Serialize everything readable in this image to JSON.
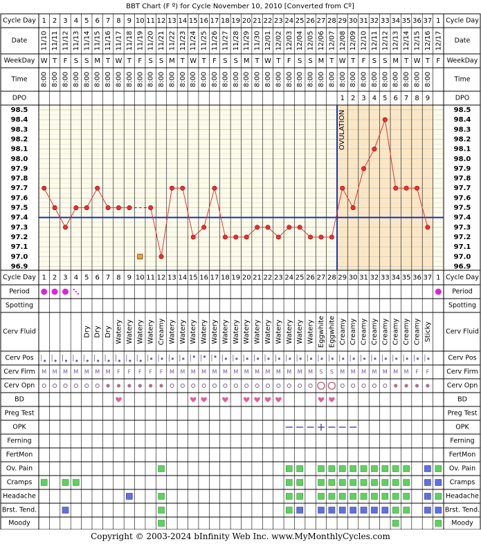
{
  "title": "BBT Chart (F º) for Cycle November 10, 2010  [Converted from Cº]",
  "footer": "Copyright © 2003-2024 bInfinity Web Inc.     www.MyMonthlyCycles.com",
  "labels": {
    "cycle_day": "Cycle Day",
    "date": "Date",
    "weekday": "WeekDay",
    "time": "Time",
    "dpo": "DPO",
    "period": "Period",
    "spotting": "Spotting",
    "cerv_fluid": "Cerv Fluid",
    "cerv_pos": "Cerv Pos",
    "cerv_firm": "Cerv Firm",
    "cerv_opn": "Cerv Opn",
    "bd": "BD",
    "preg_test": "Preg Test",
    "opk": "OPK",
    "ferning": "Ferning",
    "fertmon": "FertMon",
    "ov_pain": "Ov. Pain",
    "cramps": "Cramps",
    "headache": "Headache",
    "brst_tend": "Brst. Tend.",
    "moody": "Moody"
  },
  "ovulation_label": "OVULATION",
  "colors": {
    "grid_bg": "#fdfbe9",
    "luteal_bg": "#fce7c4",
    "header_bg": "#ffffff",
    "temp_line": "#e83030",
    "coverline": "#1030c0",
    "ovulation_line": "#1030c0",
    "period": "#e020e0",
    "bd_heart": "#e0609a",
    "symptom_green": "#60d060",
    "symptom_blue": "#6070e0",
    "opk": "#6050c0"
  },
  "chart_data": {
    "type": "line",
    "title": "BBT Chart (F º) for Cycle November 10, 2010  [Converted from Cº]",
    "x": [
      1,
      2,
      3,
      4,
      5,
      6,
      7,
      8,
      9,
      10,
      11,
      12,
      13,
      14,
      15,
      16,
      17,
      18,
      19,
      20,
      21,
      22,
      23,
      24,
      25,
      26,
      27,
      28,
      29,
      30,
      31,
      32,
      33,
      34,
      35,
      36,
      37,
      1
    ],
    "cycle_days": [
      "1",
      "2",
      "3",
      "4",
      "5",
      "6",
      "7",
      "8",
      "9",
      "10",
      "11",
      "12",
      "13",
      "14",
      "15",
      "16",
      "17",
      "18",
      "19",
      "20",
      "21",
      "22",
      "23",
      "24",
      "25",
      "26",
      "27",
      "28",
      "29",
      "30",
      "31",
      "32",
      "33",
      "34",
      "35",
      "36",
      "37",
      "1"
    ],
    "dates": [
      "11/10",
      "11/11",
      "11/12",
      "11/13",
      "11/14",
      "11/15",
      "11/16",
      "11/17",
      "11/18",
      "11/19",
      "11/20",
      "11/21",
      "11/22",
      "11/23",
      "11/24",
      "11/25",
      "11/26",
      "11/27",
      "11/28",
      "11/29",
      "11/30",
      "12/01",
      "12/02",
      "12/03",
      "12/04",
      "12/05",
      "12/06",
      "12/07",
      "12/08",
      "12/09",
      "12/10",
      "12/11",
      "12/12",
      "12/13",
      "12/14",
      "12/15",
      "12/16",
      "12/17"
    ],
    "weekdays": [
      "W",
      "T",
      "F",
      "S",
      "S",
      "M",
      "T",
      "W",
      "T",
      "F",
      "S",
      "S",
      "M",
      "T",
      "W",
      "T",
      "F",
      "S",
      "S",
      "M",
      "T",
      "W",
      "T",
      "F",
      "S",
      "S",
      "M",
      "T",
      "W",
      "T",
      "F",
      "S",
      "S",
      "M",
      "T",
      "W",
      "T",
      "F"
    ],
    "times": [
      "8:00",
      "8:00",
      "8:00",
      "8:00",
      "8:00",
      "8:00",
      "8:00",
      "8:00",
      "8:00",
      "8:00",
      "8:00",
      "8:00",
      "8:00",
      "8:00",
      "8:00",
      "8:00",
      "8:00",
      "8:00",
      "8:00",
      "8:00",
      "8:00",
      "8:00",
      "8:00",
      "8:00",
      "8:00",
      "8:00",
      "8:00",
      "8:00",
      "8:00",
      "8:00",
      "8:00",
      "8:00",
      "8:00",
      "8:00",
      "8:00",
      "8:00",
      "8:00",
      ""
    ],
    "dpo": [
      "",
      "",
      "",
      "",
      "",
      "",
      "",
      "",
      "",
      "",
      "",
      "",
      "",
      "",
      "",
      "",
      "",
      "",
      "",
      "",
      "",
      "",
      "",
      "",
      "",
      "",
      "",
      "",
      "1",
      "2",
      "3",
      "4",
      "5",
      "6",
      "7",
      "8",
      "9",
      ""
    ],
    "series": [
      {
        "values": [
          97.7,
          97.5,
          97.3,
          97.5,
          97.5,
          97.7,
          97.5,
          97.5,
          97.5,
          null,
          97.5,
          97.0,
          97.7,
          97.7,
          97.2,
          97.3,
          97.7,
          97.2,
          97.2,
          97.2,
          97.3,
          97.3,
          97.2,
          97.3,
          97.3,
          97.2,
          97.2,
          97.2,
          97.7,
          97.5,
          97.9,
          98.1,
          98.4,
          97.7,
          97.7,
          97.7,
          97.3,
          null
        ]
      }
    ],
    "dashed_segment": [
      9,
      11
    ],
    "discarded_point": {
      "day_index": 10,
      "value": 97.0
    },
    "coverline": 97.4,
    "ovulation_after_day": 28,
    "ylim": [
      96.9,
      98.5
    ],
    "yticks": [
      "98.5",
      "98.4",
      "98.3",
      "98.2",
      "98.1",
      "98.0",
      "97.9",
      "97.8",
      "97.7",
      "97.6",
      "97.5",
      "97.4",
      "97.3",
      "97.2",
      "97.1",
      "97.0",
      "96.9"
    ],
    "grid": true
  },
  "observations": {
    "period": [
      "dot",
      "dot",
      "dot",
      "spot",
      "",
      "",
      "",
      "",
      "",
      "",
      "",
      "",
      "",
      "",
      "",
      "",
      "",
      "",
      "",
      "",
      "",
      "",
      "",
      "",
      "",
      "",
      "",
      "",
      "",
      "",
      "",
      "",
      "",
      "",
      "",
      "",
      "",
      "dot"
    ],
    "cerv_fluid": [
      "",
      "",
      "",
      "",
      "Dry",
      "Dry",
      "Dry",
      "Watery",
      "Watery",
      "Watery",
      "Watery",
      "Creamy",
      "Watery",
      "Watery",
      "Watery",
      "Watery",
      "Watery",
      "Watery",
      "Watery",
      "Watery",
      "Watery",
      "Watery",
      "Watery",
      "Watery",
      "Watery",
      "Watery",
      "Eggwhite",
      "Eggwhite",
      "Creamy",
      "Creamy",
      "Creamy",
      "Creamy",
      "Creamy",
      "Creamy",
      "Creamy",
      "Creamy",
      "Sticky",
      ""
    ],
    "cerv_pos": [
      "low",
      "low",
      "low",
      "low",
      "low",
      "low",
      "low",
      "low",
      "low",
      "low",
      "mid",
      "mid",
      "mid",
      "mid",
      "high",
      "high",
      "high",
      "mid",
      "mid",
      "mid",
      "mid",
      "mid",
      "mid",
      "mid",
      "mid",
      "mid",
      "mid",
      "mid",
      "mid",
      "mid",
      "mid",
      "mid",
      "mid",
      "mid",
      "mid",
      "mid",
      "mid",
      ""
    ],
    "cerv_firm": [
      "M",
      "M",
      "M",
      "M",
      "M",
      "M",
      "M",
      "F",
      "F",
      "F",
      "F",
      "F",
      "M",
      "M",
      "M",
      "M",
      "M",
      "M",
      "M",
      "M",
      "M",
      "M",
      "M",
      "M",
      "M",
      "M",
      "S",
      "S",
      "M",
      "M",
      "M",
      "M",
      "M",
      "M",
      "M",
      "F",
      "F",
      ""
    ],
    "cerv_opn": [
      "o",
      "o",
      "o",
      "o",
      "o",
      "o",
      "f",
      "f",
      "f",
      "f",
      "f",
      "f",
      "o",
      "o",
      "o",
      "o",
      "o",
      "o",
      "o",
      "o",
      "o",
      "o",
      "o",
      "o",
      "o",
      "o",
      "O",
      "O",
      "o",
      "o",
      "o",
      "o",
      "o",
      "f",
      "f",
      "f",
      "f",
      ""
    ],
    "bd": [
      "",
      "",
      "",
      "",
      "",
      "",
      "",
      "heart",
      "",
      "",
      "",
      "",
      "",
      "",
      "heart",
      "heart",
      "",
      "heart",
      "",
      "heart",
      "heart",
      "heart",
      "heart",
      "",
      "",
      "",
      "heart",
      "heart",
      "",
      "",
      "",
      "",
      "",
      "",
      "",
      "",
      "",
      ""
    ],
    "opk": [
      "",
      "",
      "",
      "",
      "",
      "",
      "",
      "",
      "",
      "",
      "",
      "",
      "",
      "",
      "",
      "",
      "",
      "",
      "",
      "",
      "",
      "",
      "",
      "-",
      "-",
      "-",
      "+",
      "-",
      "-",
      "-",
      "",
      "",
      "",
      "",
      "",
      "",
      "",
      ""
    ],
    "ov_pain": [
      "",
      "",
      "",
      "",
      "",
      "",
      "",
      "",
      "",
      "",
      "",
      "g",
      "",
      "",
      "",
      "",
      "",
      "",
      "",
      "",
      "",
      "",
      "",
      "g",
      "g",
      "",
      "g",
      "g",
      "g",
      "g",
      "g",
      "g",
      "g",
      "g",
      "g",
      "",
      "b",
      "g"
    ],
    "cramps": [
      "g",
      "",
      "g",
      "g",
      "",
      "",
      "",
      "",
      "",
      "",
      "",
      "",
      "",
      "",
      "",
      "",
      "",
      "",
      "",
      "",
      "",
      "",
      "",
      "g",
      "g",
      "",
      "g",
      "g",
      "g",
      "g",
      "g",
      "g",
      "g",
      "g",
      "g",
      "",
      "b",
      "b"
    ],
    "headache": [
      "",
      "",
      "",
      "",
      "",
      "",
      "",
      "",
      "b",
      "",
      "",
      "g",
      "",
      "",
      "",
      "",
      "",
      "",
      "",
      "",
      "",
      "",
      "",
      "g",
      "g",
      "",
      "g",
      "g",
      "g",
      "g",
      "g",
      "g",
      "g",
      "g",
      "g",
      "",
      "b",
      "g"
    ],
    "brst_tend": [
      "",
      "",
      "b",
      "",
      "",
      "",
      "",
      "",
      "",
      "",
      "",
      "g",
      "",
      "",
      "",
      "",
      "",
      "",
      "",
      "",
      "",
      "",
      "",
      "g",
      "b",
      "",
      "b",
      "b",
      "b",
      "b",
      "b",
      "b",
      "b",
      "g",
      "g",
      "",
      "b",
      "b"
    ],
    "moody": [
      "",
      "",
      "",
      "",
      "",
      "",
      "",
      "",
      "",
      "",
      "",
      "g",
      "",
      "",
      "",
      "",
      "",
      "",
      "",
      "",
      "",
      "",
      "",
      "",
      "",
      "",
      "",
      "",
      "",
      "",
      "",
      "",
      "",
      "g",
      "",
      "",
      "",
      "g"
    ]
  }
}
